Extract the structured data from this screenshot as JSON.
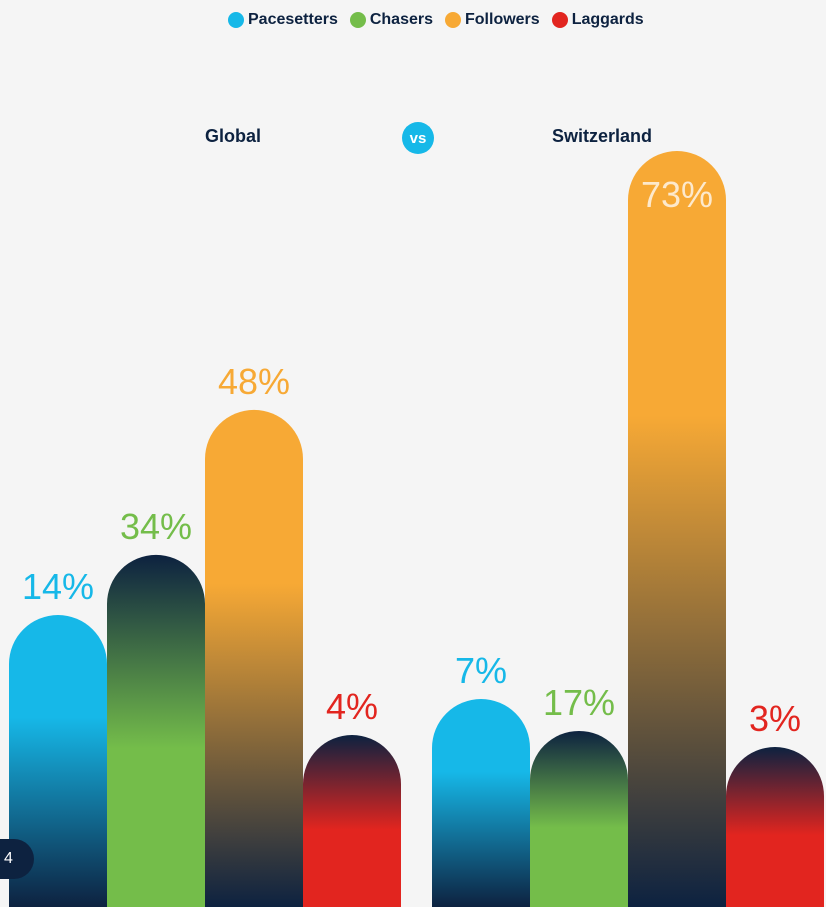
{
  "legend": [
    {
      "label": "Pacesetters",
      "color": "#16b8e8"
    },
    {
      "label": "Chasers",
      "color": "#74bd4a"
    },
    {
      "label": "Followers",
      "color": "#f7a935"
    },
    {
      "label": "Laggards",
      "color": "#e2251f"
    }
  ],
  "vs_label": "vs",
  "page_number": "4",
  "chart_data": {
    "type": "bar",
    "categories": [
      "Pacesetters",
      "Chasers",
      "Followers",
      "Laggards"
    ],
    "groups": [
      {
        "name": "Global",
        "values": [
          14,
          34,
          48,
          4
        ],
        "labels": [
          "14%",
          "34%",
          "48%",
          "4%"
        ]
      },
      {
        "name": "Switzerland",
        "values": [
          7,
          17,
          73,
          3
        ],
        "labels": [
          "7%",
          "17%",
          "73%",
          "3%"
        ]
      }
    ],
    "ylim": [
      0,
      100
    ],
    "colors": [
      "#16b8e8",
      "#74bd4a",
      "#f7a935",
      "#e2251f"
    ],
    "dark_color": "#0d2240"
  }
}
